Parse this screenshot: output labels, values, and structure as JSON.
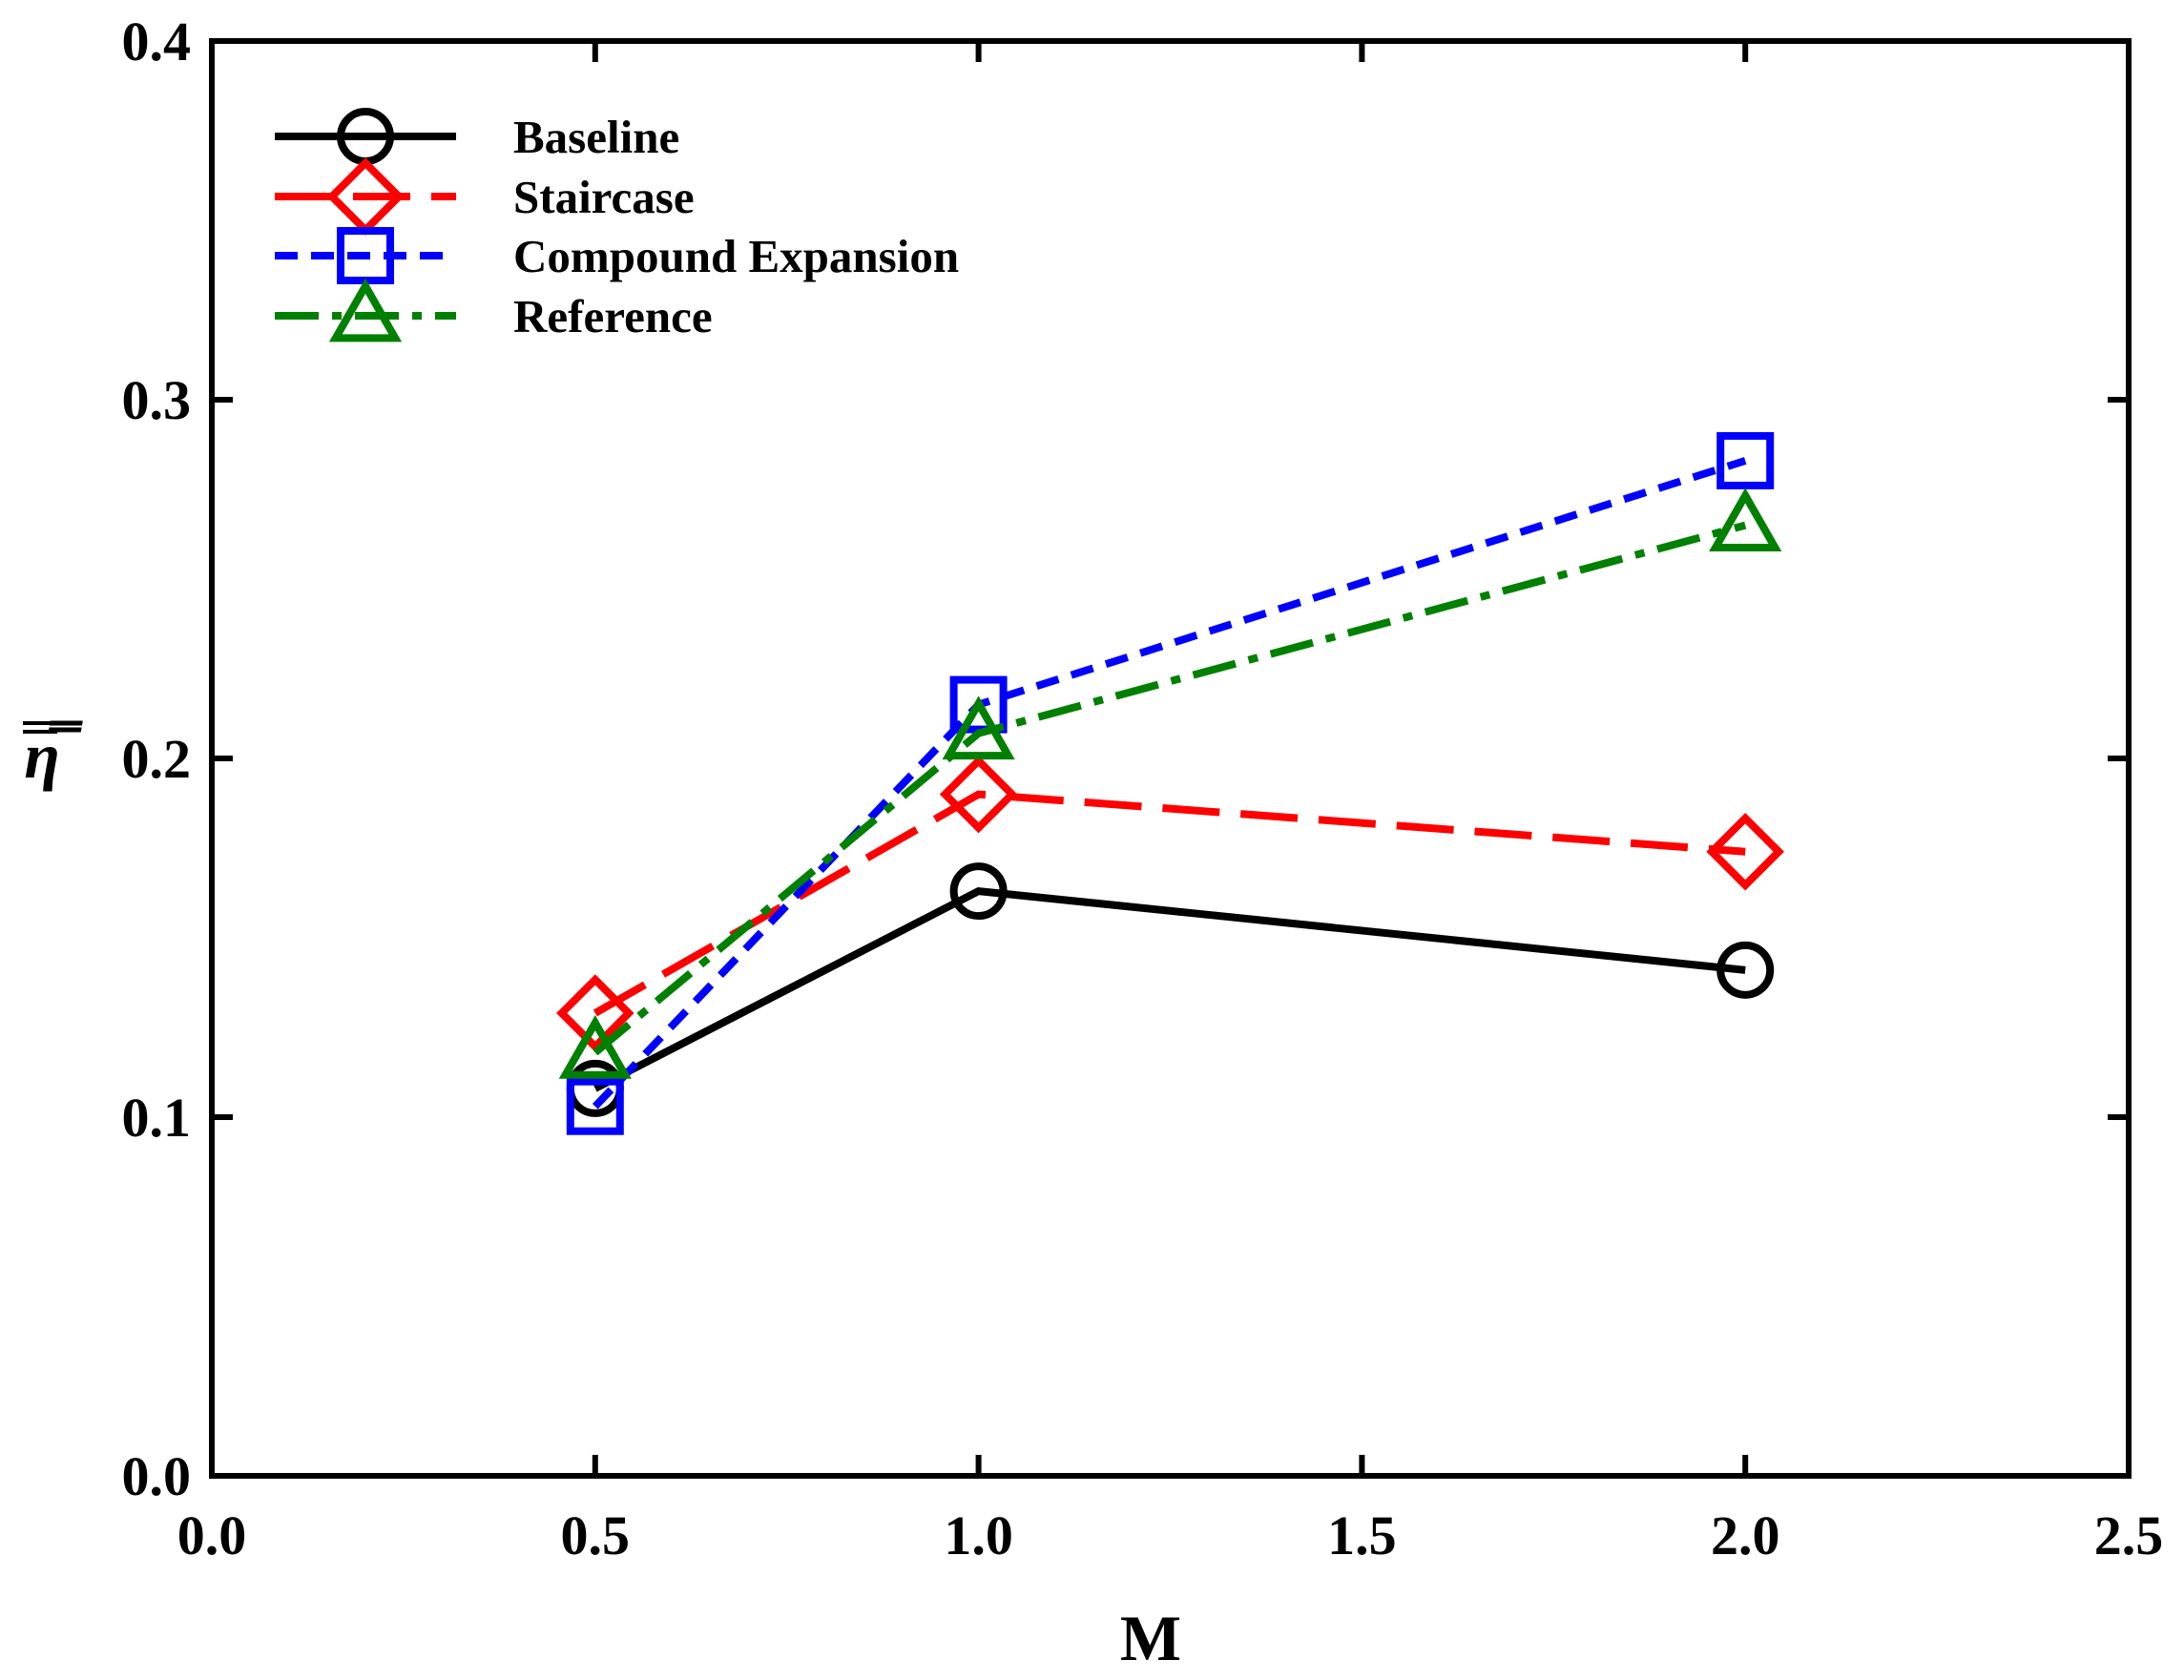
{
  "chart_data": {
    "type": "line",
    "title": "",
    "xlabel": "M",
    "ylabel": "η̿",
    "xlim": [
      0.0,
      2.5
    ],
    "ylim": [
      0.0,
      0.4
    ],
    "x_ticks": [
      0.0,
      0.5,
      1.0,
      1.5,
      2.0,
      2.5
    ],
    "y_ticks": [
      0.0,
      0.1,
      0.2,
      0.3,
      0.4
    ],
    "x_tick_labels": [
      "0.0",
      "0.5",
      "1.0",
      "1.5",
      "2.0",
      "2.5"
    ],
    "y_tick_labels": [
      "0.0",
      "0.1",
      "0.2",
      "0.3",
      "0.4"
    ],
    "grid": false,
    "legend_position": "top-left",
    "series": [
      {
        "name": "Baseline",
        "x": [
          0.5,
          1.0,
          2.0
        ],
        "values": [
          0.108,
          0.163,
          0.141
        ],
        "color": "#000000",
        "dash": "solid",
        "marker": "circle"
      },
      {
        "name": "Staircase",
        "x": [
          0.5,
          1.0,
          2.0
        ],
        "values": [
          0.129,
          0.19,
          0.174
        ],
        "color": "#ff0000",
        "dash": "long-dash",
        "marker": "diamond"
      },
      {
        "name": "Compound Expansion",
        "x": [
          0.5,
          1.0,
          2.0
        ],
        "values": [
          0.103,
          0.215,
          0.283
        ],
        "color": "#0000ff",
        "dash": "short-dash",
        "marker": "square"
      },
      {
        "name": "Reference",
        "x": [
          0.5,
          1.0,
          2.0
        ],
        "values": [
          0.118,
          0.207,
          0.265
        ],
        "color": "#008000",
        "dash": "dash-dot",
        "marker": "triangle"
      }
    ]
  }
}
